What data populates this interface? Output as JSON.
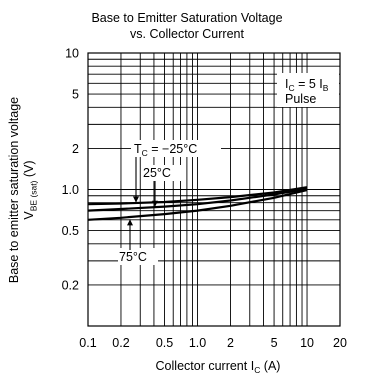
{
  "chart_data": {
    "type": "line",
    "title": "Base to Emitter Saturation Voltage",
    "subtitle": "vs. Collector Current",
    "xlabel": {
      "text": "Collector current  I",
      "sub": "C",
      "suffix": "  (A)"
    },
    "ylabel": {
      "line1": "Base to emitter saturation voltage",
      "line2_prefix": "V",
      "line2_sub": "BE (sat)",
      "line2_suffix": "  (V)"
    },
    "x_scale": "log",
    "y_scale": "log",
    "xlim": [
      0.1,
      20
    ],
    "ylim": [
      0.1,
      10
    ],
    "x_ticks": [
      0.1,
      0.2,
      0.5,
      1.0,
      2,
      5,
      10,
      20
    ],
    "x_tick_labels": [
      "0.1",
      "0.2",
      "0.5",
      "1.0",
      "2",
      "5",
      "10",
      "20"
    ],
    "y_ticks": [
      10,
      5,
      2,
      1.0,
      0.5,
      0.2
    ],
    "y_tick_labels": [
      "10",
      "5",
      "2",
      "1.0",
      "0.5",
      "0.2"
    ],
    "grid": true,
    "condition": {
      "prefix": "I",
      "sub1": "C",
      "mid": " = 5 I",
      "sub2": "B",
      "line2": "Pulse"
    },
    "series": [
      {
        "name": "-25°C",
        "x": [
          0.1,
          0.2,
          0.5,
          1,
          2,
          5,
          10
        ],
        "y": [
          0.78,
          0.79,
          0.81,
          0.84,
          0.88,
          0.95,
          1.04
        ]
      },
      {
        "name": "25°C",
        "x": [
          0.1,
          0.2,
          0.5,
          1,
          2,
          5,
          10
        ],
        "y": [
          0.7,
          0.72,
          0.75,
          0.78,
          0.83,
          0.92,
          1.01
        ]
      },
      {
        "name": "75°C",
        "x": [
          0.1,
          0.2,
          0.5,
          1,
          2,
          5,
          10
        ],
        "y": [
          0.6,
          0.62,
          0.66,
          0.7,
          0.76,
          0.87,
          0.99
        ]
      }
    ],
    "annotations": [
      {
        "prefix": "T",
        "sub": "C",
        "text": " = −25°C",
        "series": 0
      },
      {
        "text": "25°C",
        "series": 1
      },
      {
        "text": "75°C",
        "series": 2
      }
    ]
  }
}
